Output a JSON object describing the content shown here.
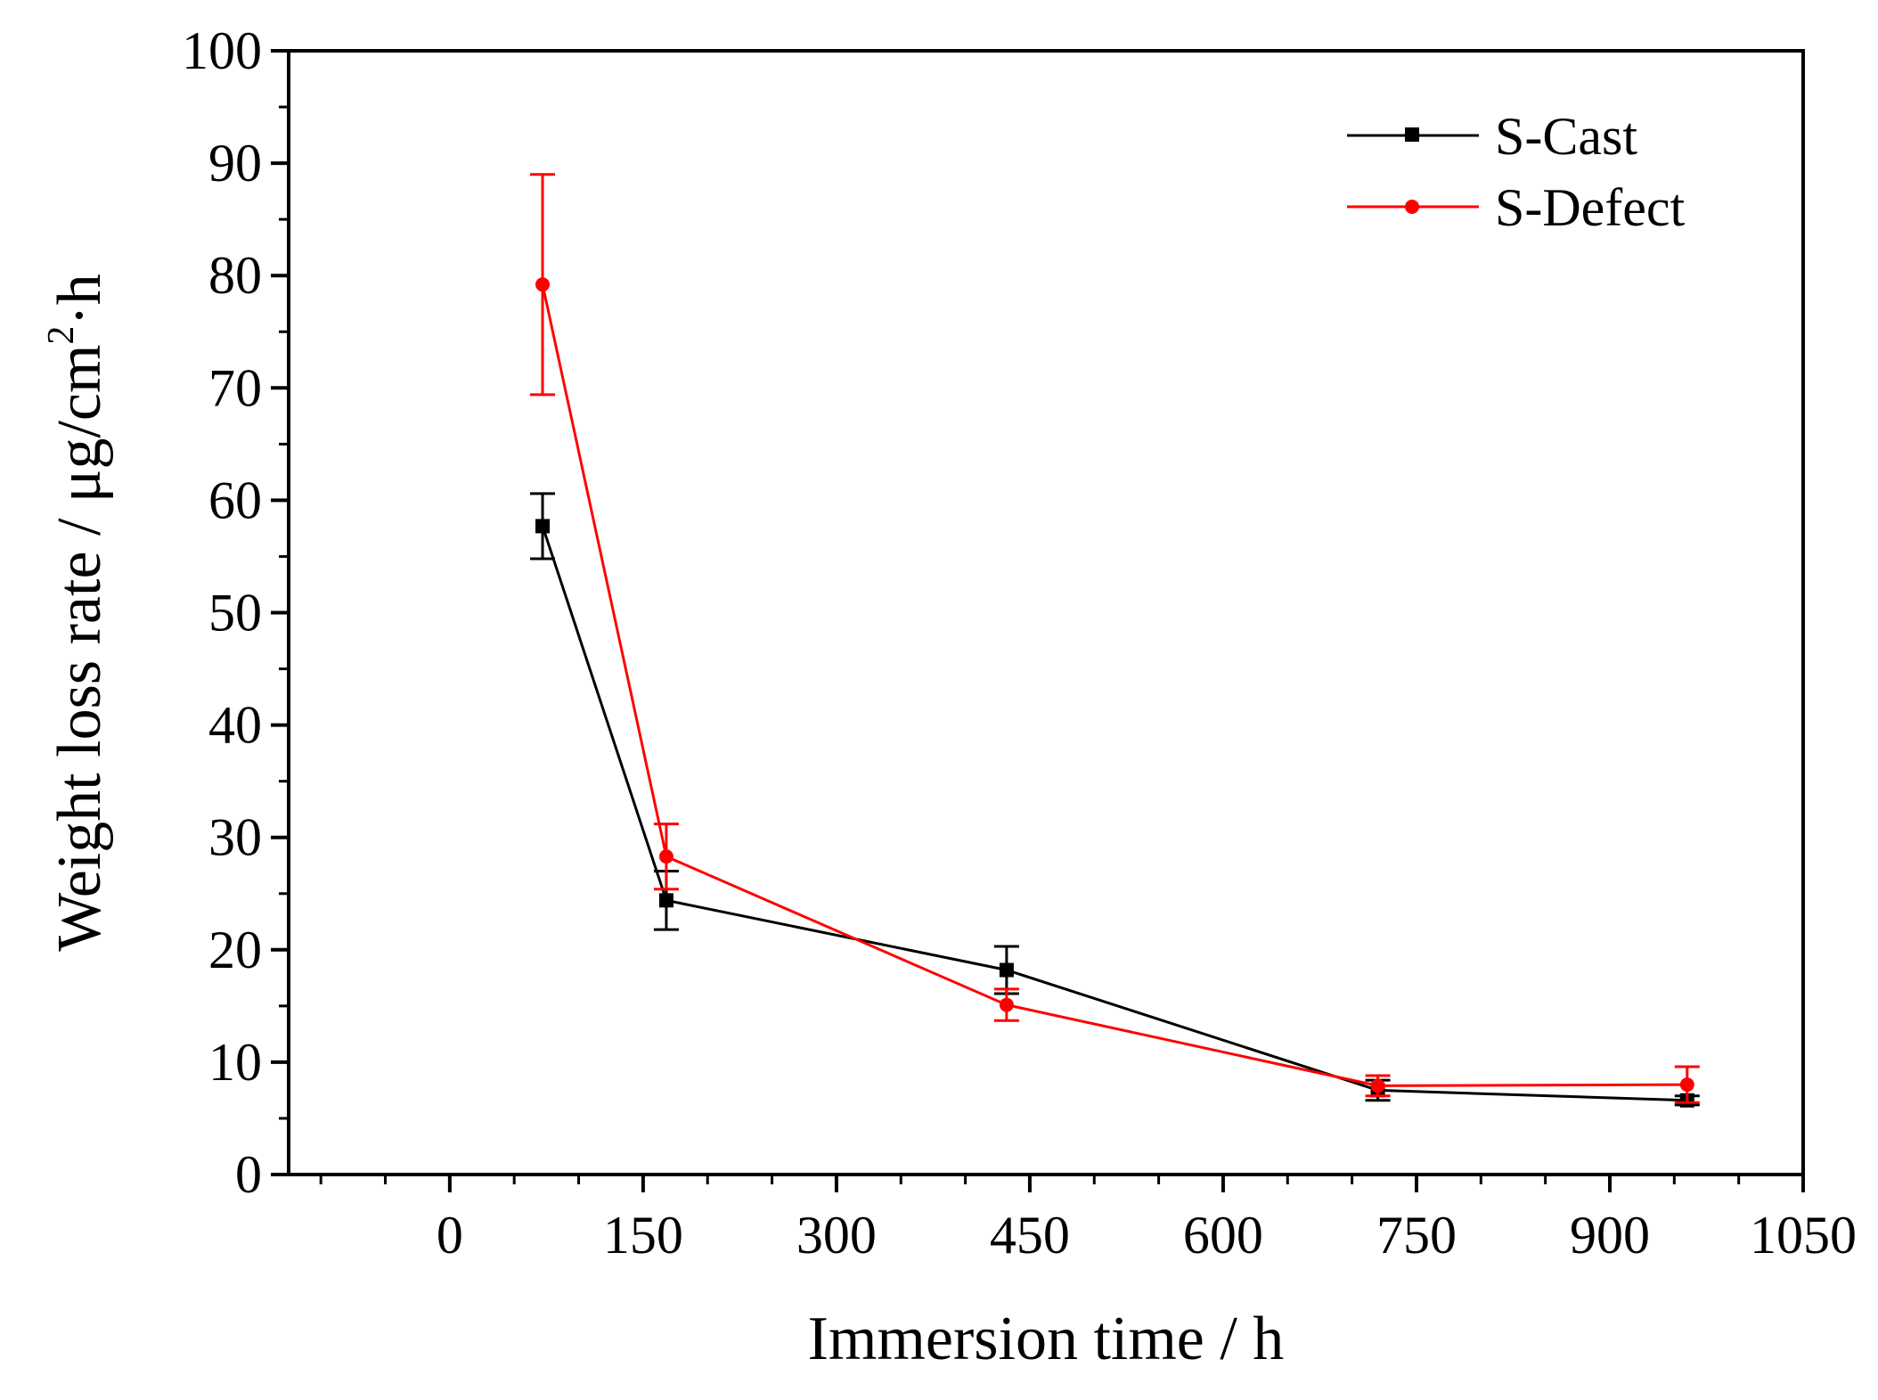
{
  "chart_data": {
    "type": "line",
    "title": "",
    "xlabel": "Immersion time / h",
    "ylabel_main": "Weight loss rate / μg/cm",
    "ylabel_sup": "2",
    "ylabel_tail": "·h",
    "xlim": [
      -125,
      1050
    ],
    "ylim": [
      0,
      100
    ],
    "xticks": [
      0,
      150,
      300,
      450,
      600,
      750,
      900,
      1050
    ],
    "xtick_labels": [
      "0",
      "150",
      "300",
      "450",
      "600",
      "750",
      "900",
      "1050"
    ],
    "yticks": [
      0,
      10,
      20,
      30,
      40,
      50,
      60,
      70,
      80,
      90,
      100
    ],
    "ytick_labels": [
      "0",
      "10",
      "20",
      "30",
      "40",
      "50",
      "60",
      "70",
      "80",
      "90",
      "100"
    ],
    "legend_position": "top-right",
    "series": [
      {
        "name": "S-Cast",
        "color": "#000000",
        "marker": "square",
        "x": [
          72,
          168,
          432,
          720,
          960
        ],
        "y": [
          57.7,
          24.4,
          18.2,
          7.5,
          6.6
        ],
        "err": [
          2.9,
          2.6,
          2.1,
          0.9,
          0.4
        ]
      },
      {
        "name": "S-Defect",
        "color": "#ff0000",
        "marker": "circle",
        "x": [
          72,
          168,
          432,
          720,
          960
        ],
        "y": [
          79.2,
          28.3,
          15.1,
          7.9,
          8.0
        ],
        "err": [
          9.8,
          2.9,
          1.4,
          0.9,
          1.6
        ]
      }
    ]
  }
}
